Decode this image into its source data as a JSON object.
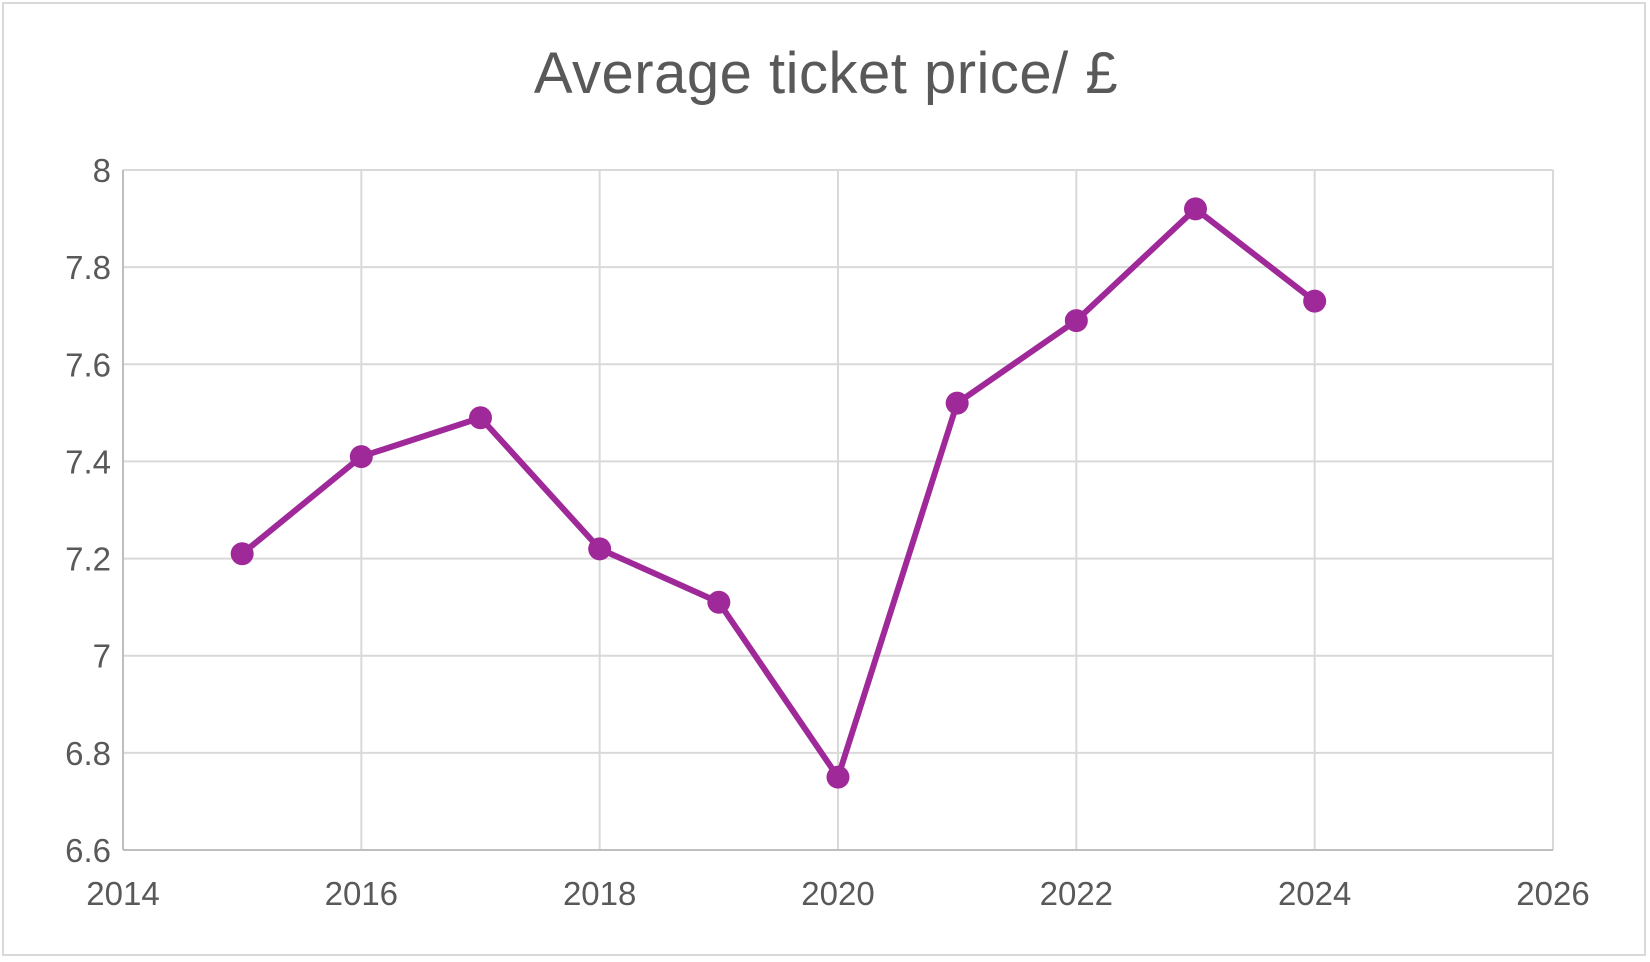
{
  "chart_data": {
    "type": "scatter",
    "title": "Average ticket price/ £",
    "xlabel": "",
    "ylabel": "",
    "xlim": [
      2014,
      2026
    ],
    "ylim": [
      6.6,
      8
    ],
    "x_ticks": [
      "2014",
      "2016",
      "2018",
      "2020",
      "2022",
      "2024",
      "2026"
    ],
    "y_ticks": [
      "6.6",
      "6.8",
      "7",
      "7.2",
      "7.4",
      "7.6",
      "7.8",
      "8"
    ],
    "grid": true,
    "legend": "none",
    "series": [
      {
        "name": "",
        "color": "#a0299a",
        "lines_and_markers": true,
        "x": [
          2015,
          2016,
          2017,
          2018,
          2019,
          2020,
          2021,
          2022,
          2023,
          2024
        ],
        "y": [
          7.21,
          7.41,
          7.49,
          7.22,
          7.11,
          6.75,
          7.52,
          7.69,
          7.92,
          7.73
        ]
      }
    ]
  }
}
